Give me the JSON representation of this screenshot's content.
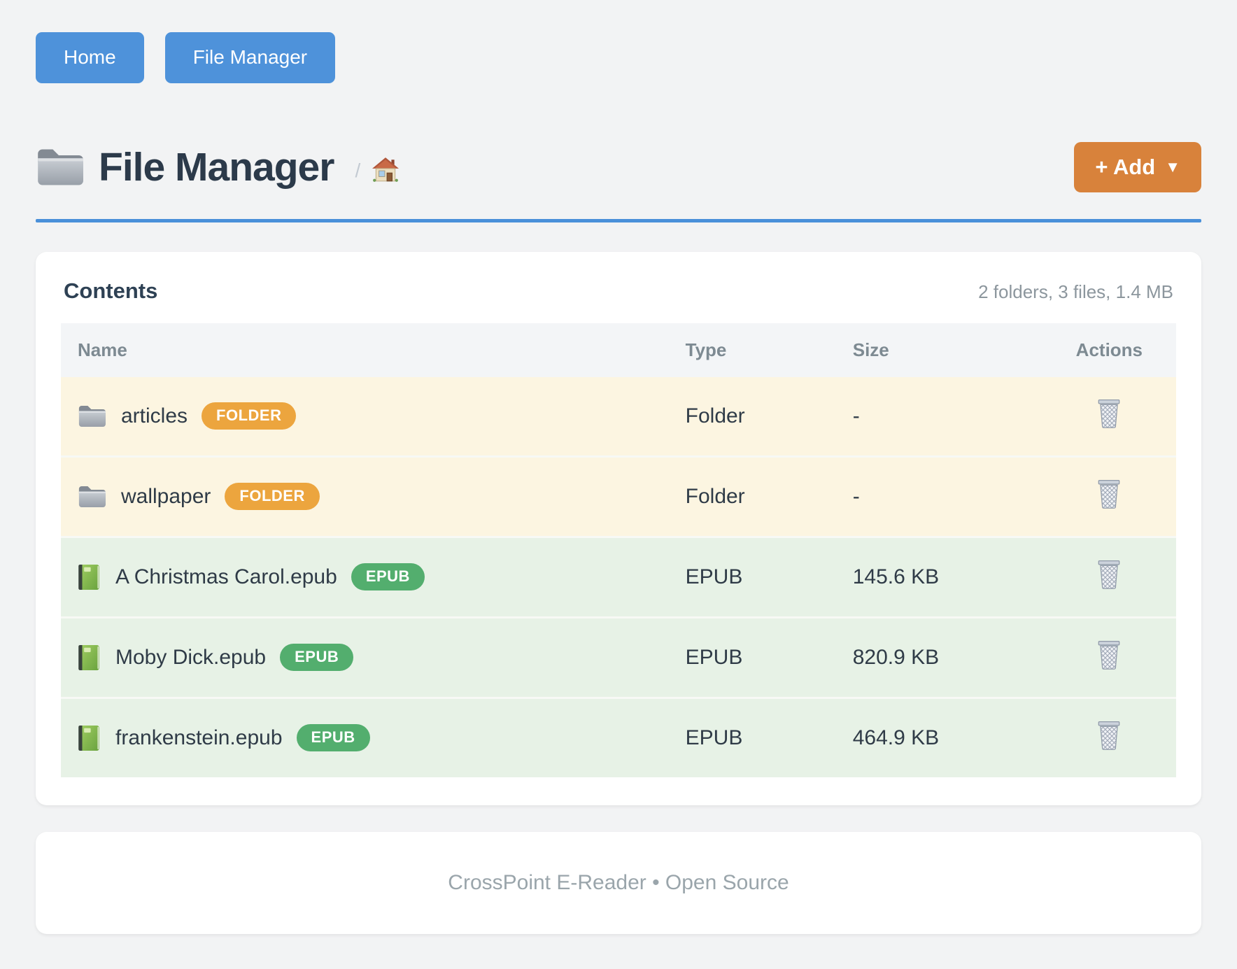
{
  "nav": {
    "buttons": [
      {
        "label": "Home"
      },
      {
        "label": "File Manager"
      }
    ]
  },
  "header": {
    "title": "File Manager",
    "breadcrumb_separator": "/",
    "add_button": {
      "label": "+ Add",
      "caret": "▼"
    }
  },
  "contents": {
    "title": "Contents",
    "summary": "2 folders, 3 files, 1.4 MB",
    "table": {
      "columns": [
        "Name",
        "Type",
        "Size",
        "Actions"
      ],
      "rows": [
        {
          "name": "articles",
          "kind": "folder",
          "badge": "FOLDER",
          "type": "Folder",
          "size": "-",
          "icon": "folder-icon",
          "action_icon": "trash-icon"
        },
        {
          "name": "wallpaper",
          "kind": "folder",
          "badge": "FOLDER",
          "type": "Folder",
          "size": "-",
          "icon": "folder-icon",
          "action_icon": "trash-icon"
        },
        {
          "name": "A Christmas Carol.epub",
          "kind": "epub",
          "badge": "EPUB",
          "type": "EPUB",
          "size": "145.6 KB",
          "icon": "book-icon",
          "action_icon": "trash-icon"
        },
        {
          "name": "Moby Dick.epub",
          "kind": "epub",
          "badge": "EPUB",
          "type": "EPUB",
          "size": "820.9 KB",
          "icon": "book-icon",
          "action_icon": "trash-icon"
        },
        {
          "name": "frankenstein.epub",
          "kind": "epub",
          "badge": "EPUB",
          "type": "EPUB",
          "size": "464.9 KB",
          "icon": "book-icon",
          "action_icon": "trash-icon"
        }
      ]
    }
  },
  "footer": {
    "text": "CrossPoint E-Reader • Open Source"
  },
  "icons": {
    "title_icon": "folder-icon",
    "breadcrumb_icon": "house-icon",
    "delete_icon": "trash-icon"
  },
  "colors": {
    "nav_button": "#4e92da",
    "divider": "#4a90d9",
    "add_button": "#d8823b",
    "badge_folder": "#eca53e",
    "badge_epub": "#53ae6e",
    "row_folder_bg": "#fcf5e1",
    "row_epub_bg": "#e7f2e6",
    "table_header_bg": "#f3f5f7",
    "page_bg": "#f2f3f4"
  }
}
